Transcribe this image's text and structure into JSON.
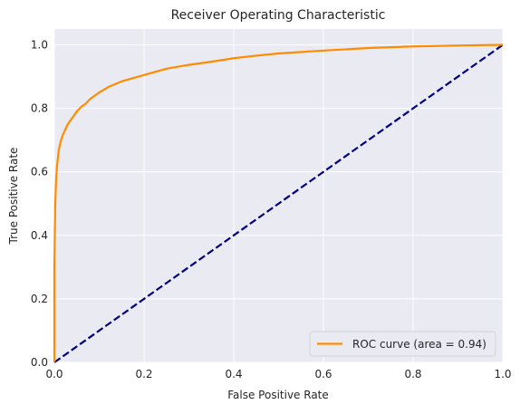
{
  "chart_data": {
    "type": "line",
    "title": "Receiver Operating Characteristic",
    "xlabel": "False Positive Rate",
    "ylabel": "True Positive Rate",
    "xlim": [
      0.0,
      1.0
    ],
    "ylim": [
      0.0,
      1.05
    ],
    "x_ticks": [
      "0.0",
      "0.2",
      "0.4",
      "0.6",
      "0.8",
      "1.0"
    ],
    "y_ticks": [
      "0.0",
      "0.2",
      "0.4",
      "0.6",
      "0.8",
      "1.0"
    ],
    "grid": true,
    "legend_position": "lower-right",
    "series": [
      {
        "name": "ROC curve (area = 0.94)",
        "style": "solid",
        "color": "#ff8c00",
        "x": [
          0.0,
          0.0,
          0.002,
          0.004,
          0.006,
          0.01,
          0.015,
          0.02,
          0.03,
          0.04,
          0.05,
          0.06,
          0.07,
          0.08,
          0.1,
          0.12,
          0.15,
          0.2,
          0.25,
          0.3,
          0.35,
          0.4,
          0.45,
          0.5,
          0.6,
          0.7,
          0.8,
          0.9,
          1.0
        ],
        "y": [
          0.0,
          0.3,
          0.5,
          0.58,
          0.62,
          0.67,
          0.7,
          0.72,
          0.75,
          0.77,
          0.79,
          0.805,
          0.815,
          0.83,
          0.85,
          0.867,
          0.885,
          0.905,
          0.925,
          0.937,
          0.947,
          0.958,
          0.966,
          0.973,
          0.982,
          0.99,
          0.995,
          0.998,
          1.0
        ]
      },
      {
        "name": "",
        "style": "dashed",
        "color": "#000080",
        "x": [
          0.0,
          1.0
        ],
        "y": [
          0.0,
          1.0
        ]
      }
    ]
  },
  "colors": {
    "plot_background": "#eaeaf2",
    "grid": "#ffffff",
    "roc": "#ff8c00",
    "baseline": "#000080"
  }
}
